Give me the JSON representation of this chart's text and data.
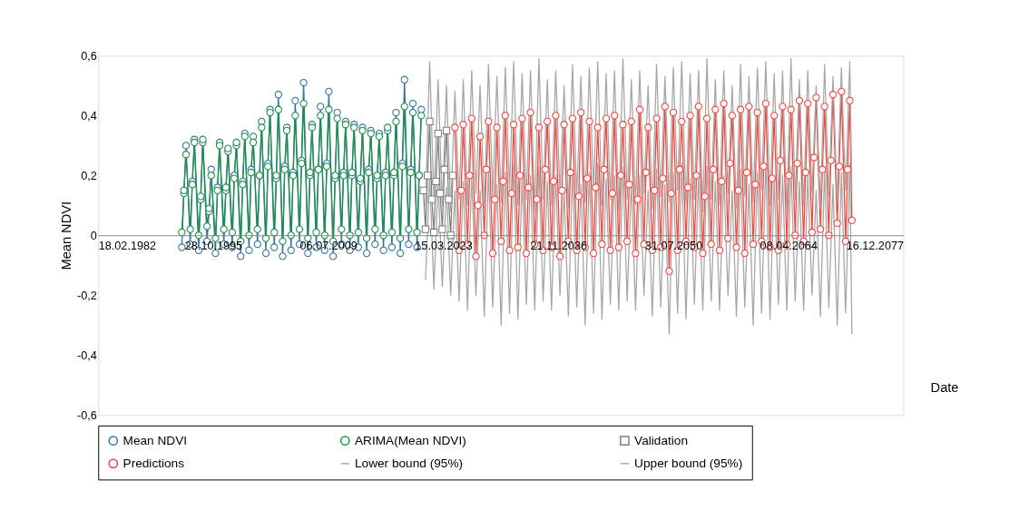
{
  "chart_data": {
    "type": "line",
    "xlabel": "Date",
    "ylabel": "Mean NDVI",
    "legend": "bottom",
    "grid": false,
    "xlim": [
      "1982-02-18",
      "2077-12-16"
    ],
    "xticks": [
      {
        "value": "1982-02-18",
        "label": "18.02.1982"
      },
      {
        "value": "1995-10-28",
        "label": "28.10.1995"
      },
      {
        "value": "2009-07-06",
        "label": "06.07.2009"
      },
      {
        "value": "2023-03-15",
        "label": "15.03.2023"
      },
      {
        "value": "2036-11-21",
        "label": "21.11.2036"
      },
      {
        "value": "2050-07-31",
        "label": "31.07.2050"
      },
      {
        "value": "2064-04-08",
        "label": "08.04.2064"
      },
      {
        "value": "2077-12-16",
        "label": "16.12.2077"
      }
    ],
    "ylim": [
      -0.6,
      0.6
    ],
    "yticks": [
      {
        "value": -0.6,
        "label": "-0,6"
      },
      {
        "value": -0.4,
        "label": "-0,4"
      },
      {
        "value": -0.2,
        "label": "-0,2"
      },
      0,
      {
        "value": 0.2,
        "label": "0,2"
      },
      {
        "value": 0.4,
        "label": "0,4"
      },
      {
        "value": 0.6,
        "label": "0,6"
      }
    ],
    "x": [
      "1992-02",
      "1992-05",
      "1992-08",
      "1993-02",
      "1993-05",
      "1993-08",
      "1994-02",
      "1994-05",
      "1994-08",
      "1995-02",
      "1995-05",
      "1995-08",
      "1996-02",
      "1996-05",
      "1996-08",
      "1997-02",
      "1997-05",
      "1997-08",
      "1998-02",
      "1998-05",
      "1998-08",
      "1999-02",
      "1999-05",
      "1999-08",
      "2000-02",
      "2000-05",
      "2000-08",
      "2001-02",
      "2001-05",
      "2001-08",
      "2002-02",
      "2002-05",
      "2002-08",
      "2003-02",
      "2003-05",
      "2003-08",
      "2004-02",
      "2004-05",
      "2004-08",
      "2005-02",
      "2005-05",
      "2005-08",
      "2006-02",
      "2006-05",
      "2006-08",
      "2007-02",
      "2007-05",
      "2007-08",
      "2008-02",
      "2008-05",
      "2008-08",
      "2009-02",
      "2009-05",
      "2009-08",
      "2010-02",
      "2010-05",
      "2010-08",
      "2011-02",
      "2011-05",
      "2011-08",
      "2012-02",
      "2012-05",
      "2012-08",
      "2013-02",
      "2013-05",
      "2013-08",
      "2014-02",
      "2014-05",
      "2014-08",
      "2015-02",
      "2015-05",
      "2015-08",
      "2016-02",
      "2016-05",
      "2016-08",
      "2017-02",
      "2017-05",
      "2017-08",
      "2018-02",
      "2018-05",
      "2018-08",
      "2019-02",
      "2019-05",
      "2019-08",
      "2020-02",
      "2020-05",
      "2020-08"
    ],
    "series": [
      {
        "name": "Mean NDVI",
        "color": "#31749f",
        "marker": "circle",
        "values": [
          -0.04,
          0.14,
          0.3,
          -0.03,
          0.18,
          0.32,
          -0.05,
          0.12,
          0.31,
          -0.02,
          0.08,
          0.22,
          -0.06,
          0.16,
          0.31,
          -0.03,
          0.15,
          0.28,
          -0.04,
          0.2,
          0.3,
          -0.07,
          0.18,
          0.34,
          -0.05,
          0.22,
          0.33,
          -0.03,
          0.2,
          0.38,
          -0.06,
          0.24,
          0.42,
          -0.04,
          0.19,
          0.47,
          -0.07,
          0.23,
          0.36,
          -0.05,
          0.21,
          0.45,
          -0.03,
          0.25,
          0.51,
          -0.06,
          0.2,
          0.37,
          -0.04,
          0.22,
          0.43,
          -0.05,
          0.24,
          0.48,
          -0.07,
          0.19,
          0.41,
          -0.03,
          0.21,
          0.38,
          -0.05,
          0.2,
          0.37,
          -0.04,
          0.18,
          0.36,
          -0.06,
          0.22,
          0.35,
          -0.03,
          0.19,
          0.34,
          -0.05,
          0.21,
          0.35,
          -0.04,
          0.2,
          0.41,
          -0.06,
          0.24,
          0.52,
          -0.03,
          0.22,
          0.44,
          -0.04,
          0.2,
          0.42
        ]
      },
      {
        "name": "ARIMA(Mean NDVI)",
        "color": "#1f8f4a",
        "marker": "circle",
        "values": [
          0.01,
          0.15,
          0.27,
          0.02,
          0.17,
          0.31,
          0.0,
          0.13,
          0.32,
          0.03,
          0.09,
          0.2,
          -0.01,
          0.15,
          0.3,
          0.02,
          0.16,
          0.29,
          0.01,
          0.19,
          0.31,
          -0.02,
          0.17,
          0.33,
          0.0,
          0.21,
          0.31,
          0.02,
          0.2,
          0.36,
          -0.01,
          0.23,
          0.41,
          0.01,
          0.2,
          0.42,
          -0.02,
          0.22,
          0.35,
          0.0,
          0.2,
          0.4,
          0.02,
          0.24,
          0.44,
          -0.01,
          0.21,
          0.36,
          0.01,
          0.22,
          0.4,
          0.0,
          0.23,
          0.42,
          -0.02,
          0.2,
          0.39,
          0.02,
          0.2,
          0.37,
          0.0,
          0.21,
          0.36,
          0.01,
          0.19,
          0.35,
          -0.01,
          0.21,
          0.34,
          0.02,
          0.2,
          0.33,
          0.0,
          0.2,
          0.36,
          0.01,
          0.21,
          0.38,
          -0.01,
          0.23,
          0.43,
          0.02,
          0.21,
          0.41,
          0.01,
          0.2,
          0.4
        ]
      },
      {
        "name": "Validation",
        "color": "#7f7f7f",
        "marker": "square",
        "x": [
          "2020-11",
          "2021-02",
          "2021-05",
          "2021-08",
          "2021-11",
          "2022-02",
          "2022-05",
          "2022-08",
          "2022-11",
          "2023-02",
          "2023-05",
          "2023-08",
          "2023-11",
          "2024-02",
          "2024-05"
        ],
        "values": [
          0.15,
          0.02,
          0.2,
          0.38,
          0.12,
          0.01,
          0.18,
          0.34,
          0.14,
          0.02,
          0.22,
          0.35,
          0.12,
          0.0,
          0.2
        ]
      },
      {
        "name": "Predictions",
        "color": "#f5453b",
        "marker": "circle",
        "x": [
          "2024-08",
          "2025-02",
          "2025-05",
          "2025-08",
          "2026-02",
          "2026-05",
          "2026-08",
          "2027-02",
          "2027-05",
          "2027-08",
          "2028-02",
          "2028-05",
          "2028-08",
          "2029-02",
          "2029-05",
          "2029-08",
          "2030-02",
          "2030-05",
          "2030-08",
          "2031-02",
          "2031-05",
          "2031-08",
          "2032-02",
          "2032-05",
          "2032-08",
          "2033-02",
          "2033-05",
          "2033-08",
          "2034-02",
          "2034-05",
          "2034-08",
          "2035-02",
          "2035-05",
          "2035-08",
          "2036-02",
          "2036-05",
          "2036-08",
          "2037-02",
          "2037-05",
          "2037-08",
          "2038-02",
          "2038-05",
          "2038-08",
          "2039-02",
          "2039-05",
          "2039-08",
          "2040-02",
          "2040-05",
          "2040-08",
          "2041-02",
          "2041-05",
          "2041-08",
          "2042-02",
          "2042-05",
          "2042-08",
          "2043-02",
          "2043-05",
          "2043-08",
          "2044-02",
          "2044-05",
          "2044-08",
          "2045-02",
          "2045-05",
          "2045-08",
          "2046-02",
          "2046-05",
          "2046-08",
          "2047-02",
          "2047-05",
          "2047-08",
          "2048-02",
          "2048-05",
          "2048-08",
          "2049-02",
          "2049-05",
          "2049-08",
          "2050-02",
          "2050-05",
          "2050-08",
          "2051-02",
          "2051-05",
          "2051-08",
          "2052-02",
          "2052-05",
          "2052-08",
          "2053-02",
          "2053-05",
          "2053-08",
          "2054-02",
          "2054-05",
          "2054-08",
          "2055-02",
          "2055-05",
          "2055-08",
          "2056-02",
          "2056-05",
          "2056-08",
          "2057-02",
          "2057-05",
          "2057-08",
          "2058-02",
          "2058-05",
          "2058-08",
          "2059-02",
          "2059-05",
          "2059-08",
          "2060-02",
          "2060-05",
          "2060-08",
          "2061-02",
          "2061-05",
          "2061-08",
          "2062-02",
          "2062-05",
          "2062-08",
          "2063-02",
          "2063-05",
          "2063-08",
          "2064-02",
          "2064-05",
          "2064-08",
          "2065-02",
          "2065-05",
          "2065-08",
          "2066-02",
          "2066-05",
          "2066-08",
          "2067-02",
          "2067-05",
          "2067-08",
          "2068-02",
          "2068-05",
          "2068-08",
          "2069-02",
          "2069-05",
          "2069-08",
          "2070-02",
          "2070-05",
          "2070-08",
          "2071-02",
          "2071-05",
          "2071-08",
          "2071-11"
        ],
        "values": [
          0.36,
          -0.05,
          0.15,
          0.37,
          -0.03,
          0.2,
          0.39,
          -0.07,
          0.1,
          0.33,
          0.0,
          0.22,
          0.38,
          -0.06,
          0.12,
          0.36,
          -0.02,
          0.18,
          0.4,
          -0.05,
          0.14,
          0.37,
          -0.04,
          0.2,
          0.39,
          -0.06,
          0.16,
          0.41,
          -0.03,
          0.12,
          0.36,
          -0.05,
          0.22,
          0.38,
          -0.04,
          0.18,
          0.4,
          -0.07,
          0.15,
          0.37,
          -0.02,
          0.21,
          0.39,
          -0.05,
          0.13,
          0.41,
          -0.04,
          0.19,
          0.38,
          -0.06,
          0.16,
          0.36,
          -0.03,
          0.22,
          0.39,
          -0.05,
          0.14,
          0.4,
          -0.04,
          0.2,
          0.37,
          -0.02,
          0.17,
          0.38,
          -0.06,
          0.12,
          0.42,
          -0.03,
          0.21,
          0.36,
          -0.05,
          0.15,
          0.39,
          -0.04,
          0.19,
          0.43,
          -0.12,
          0.14,
          0.41,
          -0.05,
          0.22,
          0.38,
          -0.02,
          0.16,
          0.4,
          -0.04,
          0.2,
          0.43,
          -0.06,
          0.13,
          0.39,
          -0.03,
          0.22,
          0.42,
          -0.05,
          0.18,
          0.44,
          -0.01,
          0.24,
          0.4,
          -0.04,
          0.15,
          0.42,
          -0.06,
          0.21,
          0.43,
          -0.03,
          0.17,
          0.41,
          -0.02,
          0.23,
          0.44,
          -0.04,
          0.19,
          0.4,
          -0.05,
          0.25,
          0.43,
          -0.03,
          0.2,
          0.42,
          0.0,
          0.24,
          0.45,
          -0.02,
          0.21,
          0.44,
          0.01,
          0.26,
          0.46,
          0.02,
          0.22,
          0.43,
          0.0,
          0.25,
          0.47,
          0.04,
          0.23,
          0.48,
          -0.02,
          0.22,
          0.45,
          0.05
        ]
      },
      {
        "name": "Lower bound (95%)",
        "color": "#a6a6a6",
        "marker": "none",
        "x": [
          "2021-02",
          "2021-08",
          "2022-02",
          "2022-08",
          "2023-02",
          "2023-08",
          "2024-02",
          "2024-08",
          "2025-02",
          "2025-08",
          "2026-02",
          "2026-08",
          "2027-02",
          "2027-08",
          "2028-02",
          "2028-08",
          "2029-02",
          "2029-08",
          "2030-02",
          "2030-08",
          "2031-02",
          "2031-08",
          "2032-02",
          "2032-08",
          "2033-02",
          "2033-08",
          "2034-02",
          "2034-08",
          "2035-02",
          "2035-08",
          "2036-02",
          "2036-08",
          "2037-02",
          "2037-08",
          "2038-02",
          "2038-08",
          "2039-02",
          "2039-08",
          "2040-02",
          "2040-08",
          "2041-02",
          "2041-08",
          "2042-02",
          "2042-08",
          "2043-02",
          "2043-08",
          "2044-02",
          "2044-08",
          "2045-02",
          "2045-08",
          "2046-02",
          "2046-08",
          "2047-02",
          "2047-08",
          "2048-02",
          "2048-08",
          "2049-02",
          "2049-08",
          "2050-02",
          "2050-08",
          "2051-02",
          "2051-08",
          "2052-02",
          "2052-08",
          "2053-02",
          "2053-08",
          "2054-02",
          "2054-08",
          "2055-02",
          "2055-08",
          "2056-02",
          "2056-08",
          "2057-02",
          "2057-08",
          "2058-02",
          "2058-08",
          "2059-02",
          "2059-08",
          "2060-02",
          "2060-08",
          "2061-02",
          "2061-08",
          "2062-02",
          "2062-08",
          "2063-02",
          "2063-08",
          "2064-02",
          "2064-08",
          "2065-02",
          "2065-08",
          "2066-02",
          "2066-08",
          "2067-02",
          "2067-08",
          "2068-02",
          "2068-08",
          "2069-02",
          "2069-08",
          "2070-02",
          "2070-08",
          "2071-02",
          "2071-08",
          "2071-11"
        ],
        "values": [
          -0.15,
          0.2,
          -0.18,
          0.18,
          -0.17,
          0.16,
          -0.2,
          0.15,
          -0.22,
          0.18,
          -0.25,
          0.2,
          -0.2,
          0.15,
          -0.27,
          0.22,
          -0.24,
          0.17,
          -0.3,
          0.21,
          -0.26,
          0.24,
          -0.28,
          0.19,
          -0.23,
          0.2,
          -0.25,
          0.23,
          -0.22,
          0.18,
          -0.25,
          0.2,
          -0.2,
          0.15,
          -0.27,
          0.22,
          -0.24,
          0.17,
          -0.3,
          0.21,
          -0.26,
          0.24,
          -0.28,
          0.19,
          -0.23,
          0.2,
          -0.25,
          0.23,
          -0.22,
          0.18,
          -0.25,
          0.2,
          -0.2,
          0.15,
          -0.27,
          0.22,
          -0.24,
          0.17,
          -0.33,
          0.21,
          -0.26,
          0.24,
          -0.28,
          0.19,
          -0.23,
          0.2,
          -0.25,
          0.23,
          -0.22,
          0.18,
          -0.25,
          0.2,
          -0.2,
          0.15,
          -0.27,
          0.22,
          -0.24,
          0.17,
          -0.3,
          0.21,
          -0.26,
          0.24,
          -0.28,
          0.19,
          -0.23,
          0.2,
          -0.25,
          0.23,
          -0.22,
          0.18,
          -0.25,
          0.2,
          -0.2,
          0.15,
          -0.27,
          0.22,
          -0.24,
          0.17,
          -0.3,
          0.21,
          -0.26,
          0.24,
          -0.33
        ]
      },
      {
        "name": "Upper bound (95%)",
        "color": "#a6a6a6",
        "marker": "none",
        "x": [
          "2021-02",
          "2021-08",
          "2022-02",
          "2022-08",
          "2023-02",
          "2023-08",
          "2024-02",
          "2024-08",
          "2025-02",
          "2025-08",
          "2026-02",
          "2026-08",
          "2027-02",
          "2027-08",
          "2028-02",
          "2028-08",
          "2029-02",
          "2029-08",
          "2030-02",
          "2030-08",
          "2031-02",
          "2031-08",
          "2032-02",
          "2032-08",
          "2033-02",
          "2033-08",
          "2034-02",
          "2034-08",
          "2035-02",
          "2035-08",
          "2036-02",
          "2036-08",
          "2037-02",
          "2037-08",
          "2038-02",
          "2038-08",
          "2039-02",
          "2039-08",
          "2040-02",
          "2040-08",
          "2041-02",
          "2041-08",
          "2042-02",
          "2042-08",
          "2043-02",
          "2043-08",
          "2044-02",
          "2044-08",
          "2045-02",
          "2045-08",
          "2046-02",
          "2046-08",
          "2047-02",
          "2047-08",
          "2048-02",
          "2048-08",
          "2049-02",
          "2049-08",
          "2050-02",
          "2050-08",
          "2051-02",
          "2051-08",
          "2052-02",
          "2052-08",
          "2053-02",
          "2053-08",
          "2054-02",
          "2054-08",
          "2055-02",
          "2055-08",
          "2056-02",
          "2056-08",
          "2057-02",
          "2057-08",
          "2058-02",
          "2058-08",
          "2059-02",
          "2059-08",
          "2060-02",
          "2060-08",
          "2061-02",
          "2061-08",
          "2062-02",
          "2062-08",
          "2063-02",
          "2063-08",
          "2064-02",
          "2064-08",
          "2065-02",
          "2065-08",
          "2066-02",
          "2066-08",
          "2067-02",
          "2067-08",
          "2068-02",
          "2068-08",
          "2069-02",
          "2069-08",
          "2070-02",
          "2070-08",
          "2071-02",
          "2071-08",
          "2071-11"
        ],
        "values": [
          0.1,
          0.58,
          0.12,
          0.52,
          0.1,
          0.5,
          0.08,
          0.48,
          0.12,
          0.52,
          0.1,
          0.55,
          0.14,
          0.5,
          0.09,
          0.57,
          0.13,
          0.53,
          0.11,
          0.56,
          0.15,
          0.58,
          0.1,
          0.54,
          0.12,
          0.55,
          0.08,
          0.59,
          0.12,
          0.52,
          0.1,
          0.55,
          0.14,
          0.5,
          0.09,
          0.57,
          0.13,
          0.53,
          0.11,
          0.56,
          0.15,
          0.58,
          0.1,
          0.54,
          0.12,
          0.55,
          0.08,
          0.59,
          0.12,
          0.52,
          0.1,
          0.55,
          0.14,
          0.5,
          0.09,
          0.57,
          0.13,
          0.53,
          0.11,
          0.56,
          0.15,
          0.58,
          0.1,
          0.54,
          0.12,
          0.55,
          0.08,
          0.59,
          0.12,
          0.52,
          0.1,
          0.55,
          0.14,
          0.5,
          0.09,
          0.57,
          0.13,
          0.53,
          0.11,
          0.56,
          0.15,
          0.58,
          0.1,
          0.54,
          0.12,
          0.55,
          0.08,
          0.59,
          0.12,
          0.52,
          0.1,
          0.55,
          0.14,
          0.5,
          0.09,
          0.57,
          0.13,
          0.53,
          0.11,
          0.56,
          0.15,
          0.58,
          0.14
        ]
      }
    ]
  }
}
